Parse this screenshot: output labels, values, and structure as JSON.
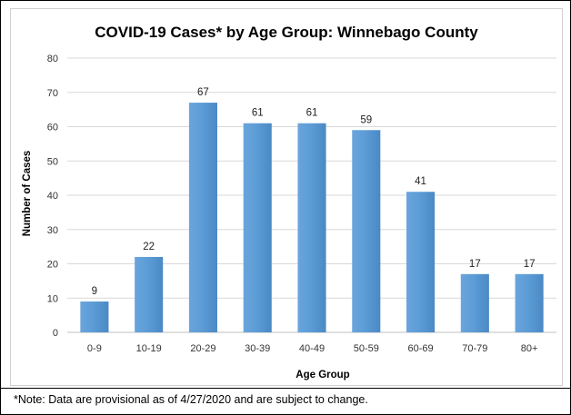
{
  "chart_data": {
    "type": "bar",
    "title": "COVID-19 Cases* by Age Group: Winnebago County",
    "xlabel": "Age Group",
    "ylabel": "Number of Cases",
    "categories": [
      "0-9",
      "10-19",
      "20-29",
      "30-39",
      "40-49",
      "50-59",
      "60-69",
      "70-79",
      "80+"
    ],
    "values": [
      9,
      22,
      67,
      61,
      61,
      59,
      41,
      17,
      17
    ],
    "ylim": [
      0,
      80
    ],
    "yticks": [
      0,
      10,
      20,
      30,
      40,
      50,
      60,
      70,
      80
    ],
    "grid": true,
    "legend": "none",
    "bar_color": "#5b9bd5"
  },
  "footnote": "*Note: Data are provisional as of 4/27/2020 and are subject to change."
}
